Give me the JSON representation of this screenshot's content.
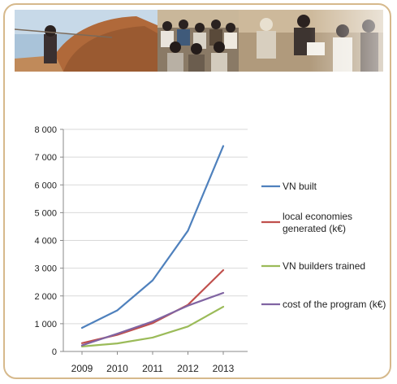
{
  "banner": {
    "photos": [
      "photo-builders-mud-wall",
      "photo-trainees-group",
      "photo-workers-discussion"
    ]
  },
  "chart_data": {
    "type": "line",
    "x": [
      2009,
      2010,
      2011,
      2012,
      2013
    ],
    "categories": [
      "2009",
      "2010",
      "2011",
      "2012",
      "2013"
    ],
    "ylim": [
      0,
      8000
    ],
    "yticks": [
      0,
      1000,
      2000,
      3000,
      4000,
      5000,
      6000,
      7000,
      8000
    ],
    "ytick_labels": [
      "0",
      "1 000",
      "2 000",
      "3 000",
      "4 000",
      "5 000",
      "6 000",
      "7 000",
      "8 000"
    ],
    "grid": true,
    "legend_position": "right",
    "title": "",
    "xlabel": "",
    "ylabel": "",
    "series": [
      {
        "name": "VN built",
        "color": "#4f81bd",
        "values": [
          850,
          1480,
          2560,
          4350,
          7400
        ]
      },
      {
        "name": "local economies generated (k€)",
        "name_lines": [
          "local economies",
          "generated (k€)"
        ],
        "color": "#c0504d",
        "values": [
          300,
          600,
          1020,
          1680,
          2930
        ]
      },
      {
        "name": "VN  builders trained",
        "color": "#9bbb59",
        "values": [
          180,
          290,
          500,
          900,
          1610
        ]
      },
      {
        "name": "cost of the program (k€)",
        "color": "#8064a2",
        "values": [
          220,
          640,
          1080,
          1650,
          2110
        ]
      }
    ]
  }
}
